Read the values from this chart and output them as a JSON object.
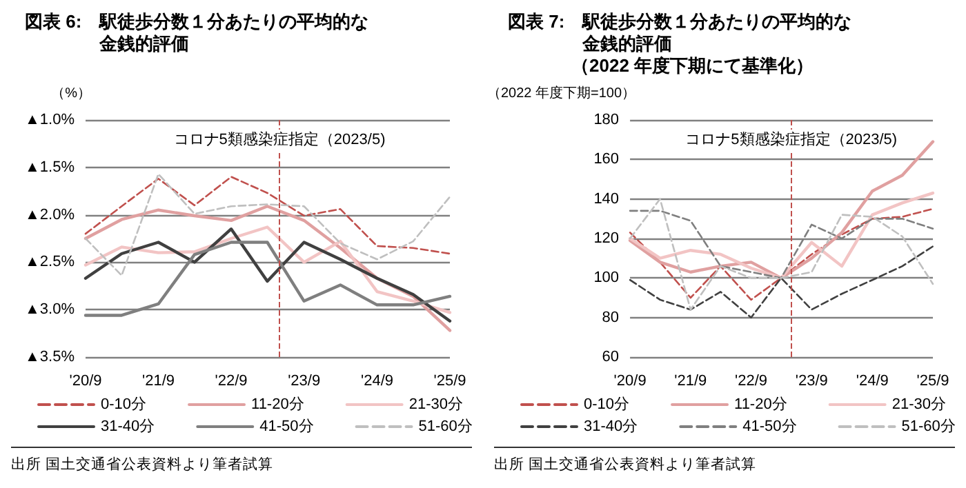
{
  "chart_data": [
    {
      "type": "line",
      "title": "図表 6:　駅徒歩分数１分あたりの平均的な金銭的評価",
      "ylabel": "（%）",
      "x": [
        "2020-09",
        "2021-03",
        "2021-09",
        "2022-03",
        "2022-09",
        "2023-03",
        "2023-09",
        "2024-03",
        "2024-09",
        "2025-03",
        "2025-09"
      ],
      "xlim": [
        "2020-09",
        "2025-09"
      ],
      "xticks": [
        {
          "value": "2020-09",
          "label": "'20/9"
        },
        {
          "value": "2021-09",
          "label": "'21/9"
        },
        {
          "value": "2022-09",
          "label": "'22/9"
        },
        {
          "value": "2023-09",
          "label": "'23/9"
        },
        {
          "value": "2024-09",
          "label": "'24/9"
        },
        {
          "value": "2025-09",
          "label": "'25/9"
        }
      ],
      "ylim": [
        -3.5,
        -1.0
      ],
      "yticks": [
        {
          "value": -3.5,
          "label": "▲3.5%"
        },
        {
          "value": -3.0,
          "label": "▲3.0%"
        },
        {
          "value": -2.5,
          "label": "▲2.5%"
        },
        {
          "value": -2.0,
          "label": "▲2.0%"
        },
        {
          "value": -1.5,
          "label": "▲1.5%"
        },
        {
          "value": -1.0,
          "label": "▲1.0%"
        }
      ],
      "grid": "y",
      "legend": "bottom",
      "marker": "none",
      "ref_lines": [
        {
          "axis": "x",
          "value": "2023-05",
          "label": "コロナ5類感染症指定（2023/5)",
          "color": "#c0504d",
          "line_style": "dashed"
        }
      ],
      "annotations": [
        "出所 国土交通省公表資料より筆者試算"
      ],
      "series": [
        {
          "name": "0-10分",
          "color": "#c0504d",
          "line_style": "dashed",
          "values": [
            -2.2,
            -1.91,
            -1.62,
            -1.9,
            -1.6,
            -1.77,
            -2.01,
            -1.94,
            -2.33,
            -2.35,
            -2.41
          ]
        },
        {
          "name": "11-20分",
          "color": "#e0a0a0",
          "line_style": "solid",
          "values": [
            -2.25,
            -2.05,
            -1.95,
            -2.01,
            -2.06,
            -1.91,
            -2.06,
            -2.35,
            -2.67,
            -2.86,
            -3.22
          ]
        },
        {
          "name": "21-30分",
          "color": "#f2c4c4",
          "line_style": "solid",
          "values": [
            -2.53,
            -2.34,
            -2.4,
            -2.39,
            -2.25,
            -2.13,
            -2.5,
            -2.28,
            -2.81,
            -2.91,
            -3.03
          ]
        },
        {
          "name": "31-40分",
          "color": "#404040",
          "line_style": "solid",
          "values": [
            -2.67,
            -2.41,
            -2.29,
            -2.5,
            -2.15,
            -2.7,
            -2.29,
            -2.47,
            -2.67,
            -2.84,
            -3.12
          ]
        },
        {
          "name": "41-50分",
          "color": "#7f7f7f",
          "line_style": "solid",
          "values": [
            -3.06,
            -3.06,
            -2.94,
            -2.42,
            -2.29,
            -2.29,
            -2.91,
            -2.74,
            -2.95,
            -2.95,
            -2.86
          ]
        },
        {
          "name": "51-60分",
          "color": "#bfbfbf",
          "line_style": "dashed",
          "values": [
            -2.25,
            -2.64,
            -1.57,
            -1.99,
            -1.91,
            -1.89,
            -1.91,
            -2.3,
            -2.47,
            -2.28,
            -1.81
          ]
        }
      ]
    },
    {
      "type": "line",
      "title": "図表 7:　駅徒歩分数１分あたりの平均的な金銭的評価",
      "subtitle": "（2022 年度下期にて基準化）",
      "ylabel": "（2022 年度下期=100）",
      "x": [
        "2020-09",
        "2021-03",
        "2021-09",
        "2022-03",
        "2022-09",
        "2023-03",
        "2023-09",
        "2024-03",
        "2024-09",
        "2025-03",
        "2025-09"
      ],
      "xlim": [
        "2020-09",
        "2025-09"
      ],
      "xticks": [
        {
          "value": "2020-09",
          "label": "'20/9"
        },
        {
          "value": "2021-09",
          "label": "'21/9"
        },
        {
          "value": "2022-09",
          "label": "'22/9"
        },
        {
          "value": "2023-09",
          "label": "'23/9"
        },
        {
          "value": "2024-09",
          "label": "'24/9"
        },
        {
          "value": "2025-09",
          "label": "'25/9"
        }
      ],
      "ylim": [
        60,
        180
      ],
      "yticks": [
        60,
        80,
        100,
        120,
        140,
        160,
        180
      ],
      "grid": "y",
      "legend": "bottom",
      "marker": "none",
      "ref_lines": [
        {
          "axis": "x",
          "value": "2023-05",
          "label": "コロナ5類感染症指定（2023/5)",
          "color": "#c0504d",
          "line_style": "dashed"
        }
      ],
      "annotations": [
        "出所 国土交通省公表資料より筆者試算"
      ],
      "series": [
        {
          "name": "0-10分",
          "color": "#c0504d",
          "line_style": "dashed",
          "values": [
            123,
            108,
            90,
            106,
            89,
            100,
            112,
            122,
            130,
            131,
            135
          ]
        },
        {
          "name": "11-20分",
          "color": "#e0a0a0",
          "line_style": "solid",
          "values": [
            119,
            108,
            103,
            106,
            108,
            100,
            110,
            123,
            144,
            152,
            169
          ]
        },
        {
          "name": "21-30分",
          "color": "#f2c4c4",
          "line_style": "solid",
          "values": [
            120,
            110,
            114,
            112,
            105,
            100,
            118,
            106,
            132,
            138,
            143
          ]
        },
        {
          "name": "31-40分",
          "color": "#404040",
          "line_style": "dashed",
          "values": [
            99,
            89,
            84,
            93,
            80,
            100,
            84,
            92,
            99,
            106,
            116
          ]
        },
        {
          "name": "41-50分",
          "color": "#7f7f7f",
          "line_style": "dashed",
          "values": [
            134,
            134,
            129,
            106,
            103,
            100,
            127,
            120,
            130,
            130,
            125
          ]
        },
        {
          "name": "51-60分",
          "color": "#bfbfbf",
          "line_style": "dashed",
          "values": [
            120,
            140,
            84,
            106,
            100,
            100,
            103,
            132,
            131,
            121,
            97
          ]
        }
      ]
    }
  ]
}
